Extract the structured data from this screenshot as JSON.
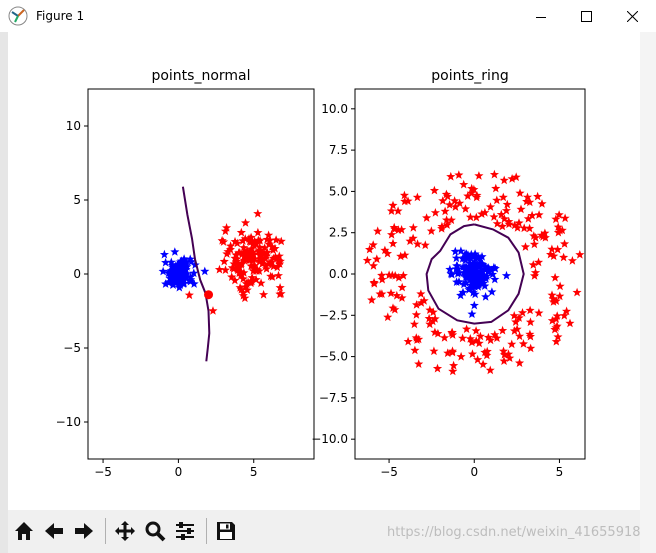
{
  "window": {
    "title": "Figure 1"
  },
  "window_controls": {
    "minimize": "minimize",
    "maximize": "maximize",
    "close": "close"
  },
  "toolbar": {
    "buttons": [
      {
        "name": "home-button",
        "icon": "home-icon"
      },
      {
        "name": "back-button",
        "icon": "arrow-left-icon"
      },
      {
        "name": "forward-button",
        "icon": "arrow-right-icon"
      },
      {
        "name": "pan-button",
        "icon": "move-icon"
      },
      {
        "name": "zoom-button",
        "icon": "magnifier-icon"
      },
      {
        "name": "subplots-button",
        "icon": "sliders-icon"
      },
      {
        "name": "save-button",
        "icon": "floppy-disk-icon"
      }
    ]
  },
  "watermark": "https://blog.csdn.net/weixin_41655918",
  "colors": {
    "class_a": "#0000ff",
    "class_b": "#ff0000",
    "contour": "#440154"
  },
  "chart_data": [
    {
      "type": "scatter",
      "title": "points_normal",
      "xlim": [
        -6,
        9
      ],
      "ylim": [
        -12.5,
        12.5
      ],
      "xticks": [
        -5,
        0,
        5
      ],
      "yticks": [
        -10,
        -5,
        0,
        5,
        10
      ],
      "series": [
        {
          "marker": "star",
          "color": "#0000ff",
          "center": [
            0,
            0
          ],
          "spread": [
            0.45,
            0.45
          ],
          "count": 150
        },
        {
          "marker": "star",
          "color": "#ff0000",
          "center": [
            5,
            1
          ],
          "spread": [
            1.0,
            1.0
          ],
          "count": 150
        }
      ],
      "highlight_point": {
        "x": 2.0,
        "y": -1.4,
        "color": "#ff0000"
      },
      "contour_line": [
        [
          0.3,
          5.9
        ],
        [
          0.6,
          4.0
        ],
        [
          0.9,
          2.4
        ],
        [
          1.1,
          1.0
        ],
        [
          1.45,
          -0.4
        ],
        [
          1.8,
          -1.3
        ],
        [
          2.0,
          -2.5
        ],
        [
          2.05,
          -4.0
        ],
        [
          1.95,
          -5.0
        ],
        [
          1.85,
          -5.9
        ]
      ]
    },
    {
      "type": "scatter",
      "title": "points_ring",
      "xlim": [
        -7,
        6.5
      ],
      "ylim": [
        -11.2,
        11.2
      ],
      "xticks": [
        -5,
        0,
        5
      ],
      "yticks": [
        -10.0,
        -7.5,
        -5.0,
        -2.5,
        0.0,
        2.5,
        5.0,
        7.5,
        10.0
      ],
      "series": [
        {
          "marker": "star",
          "color": "#0000ff",
          "center": [
            0,
            0
          ],
          "spread": [
            0.6,
            0.6
          ],
          "count": 150
        },
        {
          "marker": "star",
          "color": "#ff0000",
          "ring": {
            "r_min": 3.3,
            "r_max": 6.4
          },
          "count": 230
        }
      ],
      "highlight_point": {
        "x": -0.8,
        "y": -1.3,
        "color": "#0000ff"
      },
      "contour_line": [
        [
          0.0,
          3.0
        ],
        [
          1.1,
          2.7
        ],
        [
          2.0,
          2.2
        ],
        [
          2.6,
          1.3
        ],
        [
          2.9,
          0.0
        ],
        [
          2.6,
          -1.2
        ],
        [
          2.0,
          -2.2
        ],
        [
          1.0,
          -2.9
        ],
        [
          0.0,
          -3.0
        ],
        [
          -1.0,
          -2.8
        ],
        [
          -2.1,
          -2.1
        ],
        [
          -2.7,
          -1.0
        ],
        [
          -2.8,
          0.0
        ],
        [
          -2.5,
          0.9
        ],
        [
          -2.0,
          1.4
        ],
        [
          -1.4,
          2.4
        ],
        [
          -0.6,
          2.9
        ],
        [
          0.0,
          3.0
        ]
      ]
    }
  ]
}
